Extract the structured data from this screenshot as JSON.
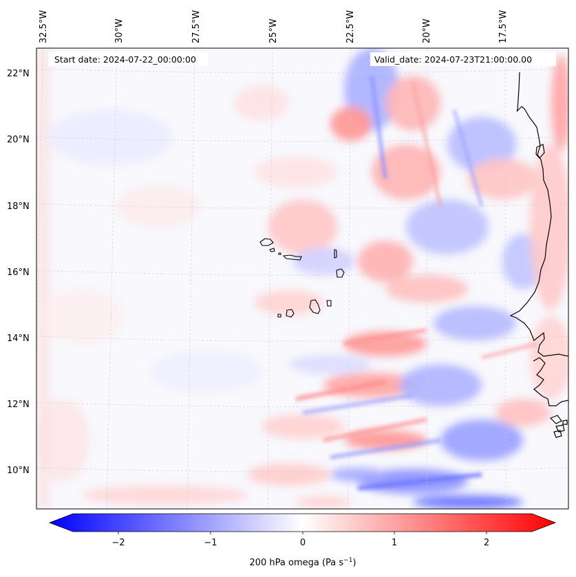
{
  "map": {
    "start_label": "Start date: 2024-07-22_00:00:00",
    "valid_label": "Valid_date: 2024-07-23T21:00:00.00",
    "longitude_ticks": [
      "32.5°W",
      "30°W",
      "27.5°W",
      "25°W",
      "22.5°W",
      "20°W",
      "17.5°W"
    ],
    "latitude_ticks": [
      "22°N",
      "20°N",
      "18°N",
      "16°N",
      "14°N",
      "12°N",
      "10°N"
    ],
    "gridlines": true,
    "coastline_color": "#000000"
  },
  "colorbar": {
    "label": "200 hPa omega (Pa s",
    "label_sup": "−1",
    "label_close": ")",
    "ticks": [
      "−2",
      "−1",
      "0",
      "1",
      "2"
    ],
    "range": [
      -2.6,
      2.6
    ],
    "colors": {
      "negative": "#0000ff",
      "zero": "#ffffff",
      "positive": "#ff0000"
    }
  }
}
